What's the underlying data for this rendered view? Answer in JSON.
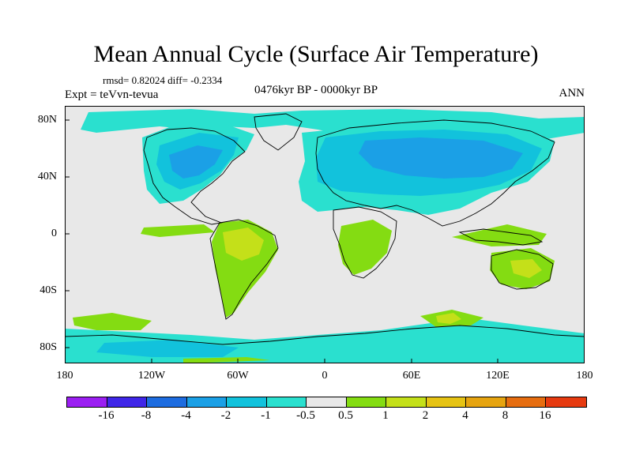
{
  "title": "Mean Annual Cycle (Surface Air Temperature)",
  "stats": "rmsd= 0.82024 diff= -0.2334",
  "experiment": "Expt = teVvn-tevua",
  "period": "0476kyr BP - 0000kyr BP",
  "season": "ANN",
  "y_axis_labels": [
    "80N",
    "40N",
    "0",
    "40S",
    "80S"
  ],
  "x_axis_labels": [
    "180",
    "120W",
    "60W",
    "0",
    "60E",
    "120E",
    "180"
  ],
  "colorbar": {
    "labels": [
      "-16",
      "-8",
      "-4",
      "-2",
      "-1",
      "-0.5",
      "0.5",
      "1",
      "2",
      "4",
      "8",
      "16"
    ],
    "colors": [
      "#9b1ff2",
      "#3f26e8",
      "#1d6ce0",
      "#1ba0e6",
      "#12c2dc",
      "#2ae0cf",
      "#e8e8e8",
      "#84dc12",
      "#c4e019",
      "#e6c314",
      "#e6a410",
      "#e66d10",
      "#e63a10"
    ]
  },
  "palette": {
    "ocean_neutral": "#e8e8e8",
    "cool_light": "#2ae0cf",
    "cool_mid": "#12c2dc",
    "cool_strong": "#1ba0e6",
    "warm_light": "#84dc12",
    "warm_mid": "#c4e019",
    "warm_strong": "#e6c314"
  }
}
